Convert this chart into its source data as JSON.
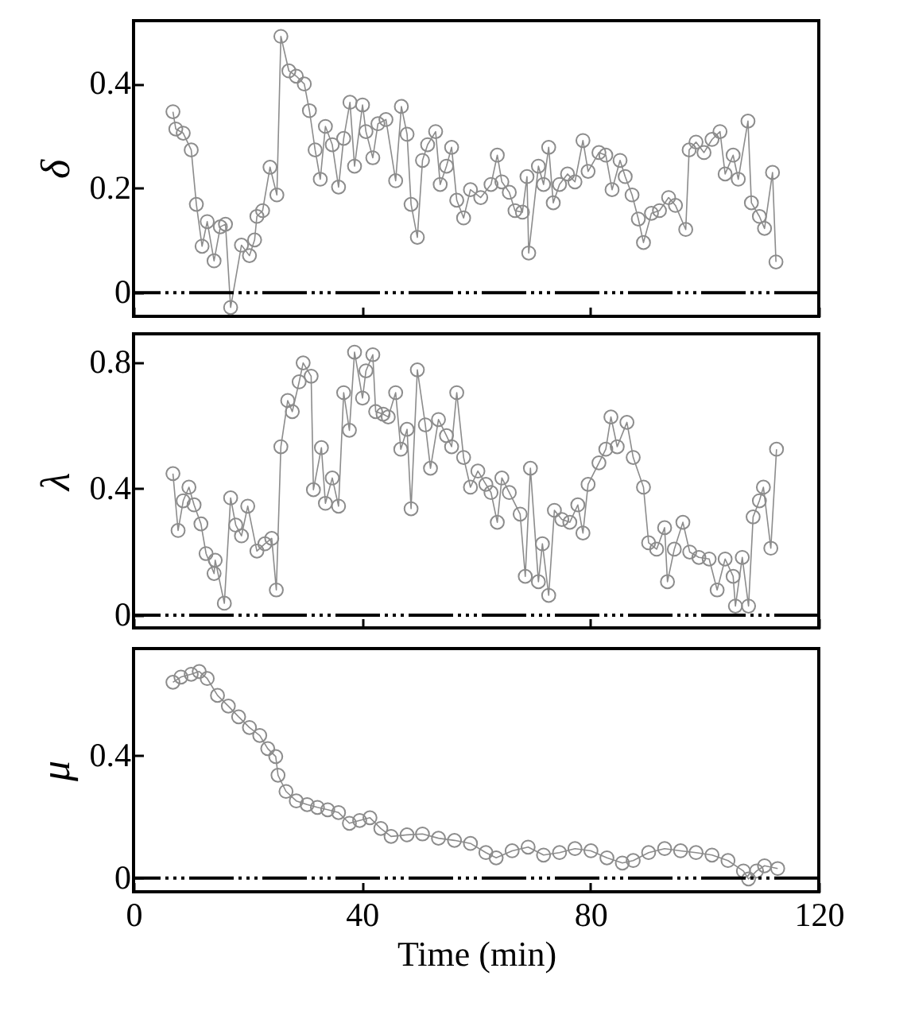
{
  "chart_data": [
    {
      "type": "line",
      "ylabel": "δ",
      "xlim": [
        0,
        120
      ],
      "xticks": [
        0,
        40,
        80,
        120
      ],
      "ylim": [
        -0.045,
        0.52
      ],
      "yticks": [
        0,
        0.2,
        0.4
      ],
      "tick_labels": "y",
      "grid": false,
      "marker": "circle",
      "line_style": "solid",
      "ref_lines": [
        {
          "axis": "y",
          "value": 0,
          "line_style": "dashed",
          "color": "#000000"
        }
      ],
      "series": [
        {
          "color": "#8c8c8c",
          "x": [
            6.9,
            7.4,
            8.7,
            10.1,
            11.0,
            12.0,
            12.9,
            14.1,
            15.2,
            16.1,
            17.0,
            18.9,
            20.3,
            21.2,
            21.6,
            22.6,
            23.9,
            25.1,
            25.8,
            27.2,
            28.5,
            29.9,
            30.8,
            31.8,
            32.7,
            33.6,
            34.8,
            35.9,
            36.8,
            37.9,
            38.7,
            40.1,
            40.7,
            41.9,
            42.8,
            44.2,
            45.9,
            46.9,
            47.9,
            48.6,
            49.7,
            50.6,
            51.5,
            52.9,
            53.7,
            54.8,
            55.7,
            56.6,
            57.8,
            59.0,
            60.8,
            62.6,
            63.7,
            64.5,
            65.8,
            66.8,
            68.1,
            68.9,
            69.2,
            70.9,
            71.8,
            72.7,
            73.5,
            74.6,
            76.0,
            77.3,
            78.7,
            79.6,
            81.5,
            82.7,
            83.8,
            85.2,
            86.1,
            87.3,
            88.4,
            89.3,
            90.7,
            92.1,
            93.7,
            94.9,
            96.7,
            97.3,
            98.5,
            99.9,
            101.3,
            102.7,
            103.6,
            105.0,
            105.9,
            107.6,
            108.2,
            109.6,
            110.5,
            111.9,
            112.5
          ],
          "values": [
            0.346,
            0.313,
            0.305,
            0.273,
            0.169,
            0.089,
            0.136,
            0.061,
            0.126,
            0.131,
            -0.028,
            0.091,
            0.071,
            0.101,
            0.146,
            0.157,
            0.24,
            0.187,
            0.49,
            0.424,
            0.414,
            0.399,
            0.348,
            0.273,
            0.217,
            0.318,
            0.283,
            0.202,
            0.295,
            0.364,
            0.242,
            0.359,
            0.308,
            0.258,
            0.323,
            0.331,
            0.214,
            0.356,
            0.303,
            0.169,
            0.106,
            0.253,
            0.283,
            0.308,
            0.207,
            0.242,
            0.278,
            0.177,
            0.143,
            0.197,
            0.182,
            0.207,
            0.263,
            0.212,
            0.192,
            0.157,
            0.154,
            0.222,
            0.076,
            0.242,
            0.207,
            0.278,
            0.172,
            0.207,
            0.227,
            0.212,
            0.291,
            0.232,
            0.268,
            0.263,
            0.197,
            0.253,
            0.222,
            0.187,
            0.141,
            0.096,
            0.152,
            0.157,
            0.182,
            0.167,
            0.121,
            0.273,
            0.288,
            0.268,
            0.293,
            0.308,
            0.227,
            0.263,
            0.217,
            0.328,
            0.172,
            0.146,
            0.123,
            0.23,
            0.059
          ]
        }
      ]
    },
    {
      "type": "line",
      "ylabel": "λ",
      "xlim": [
        0,
        120
      ],
      "xticks": [
        0,
        40,
        80,
        120
      ],
      "ylim": [
        -0.04,
        0.89
      ],
      "yticks": [
        0,
        0.4,
        0.8
      ],
      "tick_labels": "y",
      "grid": false,
      "marker": "circle",
      "line_style": "solid",
      "ref_lines": [
        {
          "axis": "y",
          "value": 0,
          "line_style": "dashed",
          "color": "#000000"
        }
      ],
      "series": [
        {
          "color": "#8c8c8c",
          "x": [
            6.9,
            7.8,
            8.7,
            9.7,
            10.6,
            11.8,
            12.7,
            14.1,
            14.3,
            15.9,
            17.0,
            17.9,
            18.9,
            20.0,
            21.6,
            23.0,
            24.2,
            25.0,
            25.8,
            27.0,
            27.8,
            29.0,
            29.7,
            31.1,
            31.5,
            32.9,
            33.6,
            34.8,
            35.9,
            36.8,
            37.8,
            38.7,
            40.1,
            40.7,
            41.9,
            42.4,
            43.7,
            44.6,
            45.9,
            46.8,
            47.9,
            48.6,
            49.7,
            51.1,
            52.0,
            53.4,
            54.8,
            55.7,
            56.6,
            57.8,
            59.0,
            60.3,
            61.7,
            62.6,
            63.7,
            64.5,
            65.8,
            67.7,
            68.6,
            69.5,
            70.9,
            71.6,
            72.7,
            73.7,
            75.0,
            76.4,
            77.8,
            78.7,
            79.6,
            81.5,
            82.7,
            83.6,
            84.7,
            86.4,
            87.5,
            89.3,
            90.2,
            91.6,
            93.0,
            93.5,
            94.7,
            96.2,
            97.4,
            99.0,
            100.8,
            102.2,
            103.6,
            105.0,
            105.4,
            106.6,
            107.7,
            108.5,
            109.6,
            110.3,
            111.6,
            112.6
          ],
          "values": [
            0.448,
            0.268,
            0.362,
            0.405,
            0.349,
            0.289,
            0.195,
            0.132,
            0.174,
            0.038,
            0.371,
            0.285,
            0.251,
            0.345,
            0.203,
            0.226,
            0.243,
            0.08,
            0.533,
            0.679,
            0.644,
            0.738,
            0.798,
            0.756,
            0.397,
            0.53,
            0.354,
            0.434,
            0.345,
            0.704,
            0.585,
            0.832,
            0.687,
            0.773,
            0.824,
            0.644,
            0.636,
            0.627,
            0.704,
            0.525,
            0.588,
            0.337,
            0.776,
            0.602,
            0.465,
            0.619,
            0.568,
            0.533,
            0.704,
            0.499,
            0.405,
            0.456,
            0.414,
            0.388,
            0.294,
            0.434,
            0.388,
            0.32,
            0.123,
            0.465,
            0.106,
            0.226,
            0.063,
            0.332,
            0.303,
            0.294,
            0.349,
            0.26,
            0.414,
            0.482,
            0.525,
            0.627,
            0.533,
            0.61,
            0.499,
            0.405,
            0.229,
            0.209,
            0.277,
            0.106,
            0.209,
            0.294,
            0.2,
            0.183,
            0.178,
            0.08,
            0.178,
            0.123,
            0.029,
            0.183,
            0.029,
            0.311,
            0.362,
            0.405,
            0.212,
            0.525
          ]
        }
      ]
    },
    {
      "type": "line",
      "xlabel": "Time (min)",
      "ylabel": "μ",
      "xlim": [
        0,
        120
      ],
      "xticks": [
        0,
        40,
        80,
        120
      ],
      "ylim": [
        -0.045,
        0.75
      ],
      "yticks": [
        0,
        0.4
      ],
      "grid": false,
      "marker": "circle",
      "line_style": "solid",
      "ref_lines": [
        {
          "axis": "y",
          "value": 0,
          "line_style": "dashed",
          "color": "#000000"
        }
      ],
      "series": [
        {
          "color": "#8c8c8c",
          "x": [
            6.9,
            8.3,
            10.1,
            11.5,
            12.9,
            14.7,
            16.6,
            18.4,
            20.3,
            22.1,
            23.5,
            24.9,
            25.3,
            26.7,
            28.5,
            30.4,
            32.2,
            34.0,
            35.9,
            37.8,
            39.6,
            41.4,
            43.3,
            45.1,
            47.9,
            50.6,
            53.4,
            56.2,
            59.0,
            61.7,
            63.5,
            66.3,
            69.1,
            71.8,
            74.6,
            77.3,
            80.1,
            82.9,
            85.6,
            87.5,
            90.2,
            93.0,
            95.8,
            98.5,
            101.3,
            104.1,
            106.8,
            107.7,
            109.1,
            110.5,
            112.8
          ],
          "values": [
            0.64,
            0.657,
            0.666,
            0.675,
            0.652,
            0.597,
            0.562,
            0.527,
            0.492,
            0.466,
            0.423,
            0.397,
            0.336,
            0.283,
            0.252,
            0.24,
            0.231,
            0.223,
            0.214,
            0.179,
            0.188,
            0.197,
            0.162,
            0.136,
            0.141,
            0.144,
            0.13,
            0.123,
            0.113,
            0.083,
            0.066,
            0.089,
            0.101,
            0.075,
            0.083,
            0.096,
            0.089,
            0.066,
            0.049,
            0.057,
            0.083,
            0.096,
            0.089,
            0.083,
            0.075,
            0.057,
            0.023,
            -0.003,
            0.023,
            0.04,
            0.031
          ]
        }
      ]
    }
  ]
}
